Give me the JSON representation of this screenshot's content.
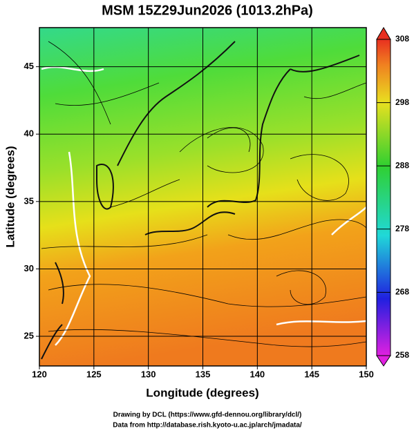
{
  "title": "MSM 15Z29Jun2026 (1013.2hPa)",
  "x_label": "Longitude (degrees)",
  "y_label": "Latitude  (degrees)",
  "xlim": [
    120,
    150
  ],
  "xticks": [
    120,
    125,
    130,
    135,
    140,
    145,
    150
  ],
  "ylim": [
    22.8,
    47.9
  ],
  "yticks": [
    25,
    30,
    35,
    40,
    45
  ],
  "grid": true,
  "colorbar": {
    "lim": [
      258,
      308
    ],
    "ticks": [
      258,
      268,
      278,
      288,
      298,
      308
    ]
  },
  "footer": [
    "Drawing by DCL (https://www.gfd-dennou.org/library/dcl/)",
    "Data from http://database.rish.kyoto-u.ac.jp/arch/jmadata/"
  ]
}
